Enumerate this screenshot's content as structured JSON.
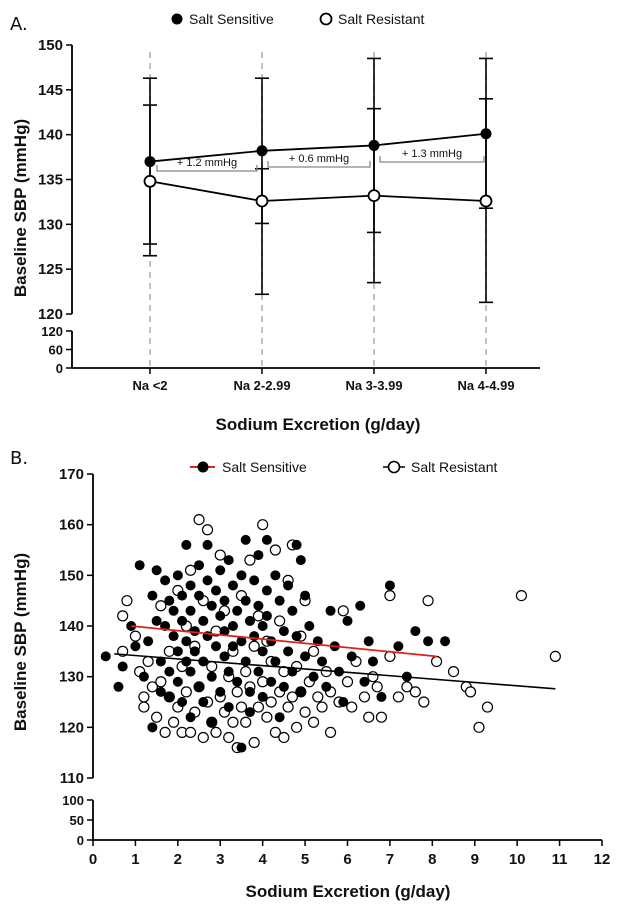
{
  "chart_data": [
    {
      "panel_label": "A.",
      "type": "line",
      "xlabel": "Sodium Excretion (g/day)",
      "ylabel": "Baseline SBP (mmHg)",
      "ylim": [
        120,
        150
      ],
      "y_broken_axis": {
        "lower_range": [
          0,
          120
        ],
        "lower_ticks": [
          "0",
          "60",
          "120"
        ]
      },
      "yticks": [
        "120",
        "125",
        "130",
        "135",
        "140",
        "145",
        "150"
      ],
      "categories": [
        "Na <2",
        "Na 2-2.99",
        "Na 3-3.99",
        "Na 4-4.99"
      ],
      "legend": {
        "placement": "top",
        "entries": [
          "Salt Sensitive",
          "Salt Resistant"
        ]
      },
      "series": [
        {
          "name": "Salt Sensitive",
          "marker": "filled-circle",
          "values": [
            137.0,
            138.2,
            138.8,
            140.1
          ],
          "error_low": [
            126.5,
            122.2,
            123.5,
            121.3
          ],
          "error_high": [
            146.3,
            146.3,
            148.5,
            148.5
          ]
        },
        {
          "name": "Salt Resistant",
          "marker": "open-circle",
          "values": [
            134.8,
            132.6,
            133.2,
            132.6
          ],
          "error_low": [
            127.8,
            130.1,
            129.1,
            131.8
          ],
          "error_high": [
            143.3,
            136.2,
            142.9,
            144.0
          ]
        }
      ],
      "annotations": [
        "+ 1.2 mmHg",
        "+ 0.6 mmHg",
        "+ 1.3 mmHg"
      ],
      "grid": false
    },
    {
      "panel_label": "B.",
      "type": "scatter",
      "xlabel": "Sodium Excretion (g/day)",
      "ylabel": "Baseline SBP (mmHg)",
      "xlim": [
        0,
        12
      ],
      "ylim": [
        110,
        170
      ],
      "y_broken_axis": {
        "lower_range": [
          0,
          100
        ],
        "lower_ticks": [
          "0",
          "50",
          "100"
        ]
      },
      "xticks": [
        "0",
        "1",
        "2",
        "3",
        "4",
        "5",
        "6",
        "7",
        "8",
        "9",
        "10",
        "11",
        "12"
      ],
      "yticks": [
        "110",
        "120",
        "130",
        "140",
        "150",
        "160",
        "170"
      ],
      "legend": {
        "placement": "top",
        "entries": [
          "Salt Sensitive",
          "Salt Resistant"
        ]
      },
      "series": [
        {
          "name": "Salt Sensitive",
          "marker": "filled-circle",
          "color": "#000000",
          "trendline": {
            "x": [
              0.9,
              8.1
            ],
            "y": [
              140.0,
              134.0
            ],
            "color": "#e02020"
          },
          "points": [
            [
              0.3,
              134
            ],
            [
              0.6,
              128
            ],
            [
              0.7,
              132
            ],
            [
              0.9,
              140
            ],
            [
              1.0,
              136
            ],
            [
              1.1,
              152
            ],
            [
              1.2,
              130
            ],
            [
              1.3,
              137
            ],
            [
              1.4,
              146
            ],
            [
              1.4,
              120
            ],
            [
              1.5,
              151
            ],
            [
              1.5,
              141
            ],
            [
              1.6,
              127
            ],
            [
              1.6,
              133
            ],
            [
              1.7,
              149
            ],
            [
              1.7,
              140
            ],
            [
              1.8,
              145
            ],
            [
              1.8,
              131
            ],
            [
              1.8,
              126
            ],
            [
              1.9,
              138
            ],
            [
              1.9,
              143
            ],
            [
              2.0,
              135
            ],
            [
              2.0,
              129
            ],
            [
              2.0,
              150
            ],
            [
              2.1,
              146
            ],
            [
              2.1,
              141
            ],
            [
              2.1,
              125
            ],
            [
              2.2,
              137
            ],
            [
              2.2,
              133
            ],
            [
              2.2,
              156
            ],
            [
              2.3,
              148
            ],
            [
              2.3,
              143
            ],
            [
              2.3,
              131
            ],
            [
              2.3,
              122
            ],
            [
              2.4,
              139
            ],
            [
              2.4,
              135
            ],
            [
              2.5,
              152
            ],
            [
              2.5,
              146
            ],
            [
              2.5,
              128
            ],
            [
              2.6,
              141
            ],
            [
              2.6,
              133
            ],
            [
              2.6,
              125
            ],
            [
              2.7,
              156
            ],
            [
              2.7,
              149
            ],
            [
              2.7,
              138
            ],
            [
              2.8,
              144
            ],
            [
              2.8,
              130
            ],
            [
              2.8,
              121
            ],
            [
              2.9,
              147
            ],
            [
              2.9,
              136
            ],
            [
              3.0,
              151
            ],
            [
              3.0,
              142
            ],
            [
              3.0,
              127
            ],
            [
              3.1,
              139
            ],
            [
              3.1,
              134
            ],
            [
              3.1,
              145
            ],
            [
              3.2,
              153
            ],
            [
              3.2,
              131
            ],
            [
              3.2,
              124
            ],
            [
              3.3,
              148
            ],
            [
              3.3,
              140
            ],
            [
              3.3,
              136
            ],
            [
              3.4,
              143
            ],
            [
              3.4,
              129
            ],
            [
              3.5,
              150
            ],
            [
              3.5,
              137
            ],
            [
              3.5,
              116
            ],
            [
              3.6,
              157
            ],
            [
              3.6,
              145
            ],
            [
              3.6,
              133
            ],
            [
              3.7,
              141
            ],
            [
              3.7,
              127
            ],
            [
              3.7,
              123
            ],
            [
              3.8,
              149
            ],
            [
              3.8,
              138
            ],
            [
              3.9,
              154
            ],
            [
              3.9,
              144
            ],
            [
              3.9,
              131
            ],
            [
              4.0,
              140
            ],
            [
              4.0,
              135
            ],
            [
              4.0,
              126
            ],
            [
              4.1,
              157
            ],
            [
              4.1,
              147
            ],
            [
              4.1,
              142
            ],
            [
              4.2,
              137
            ],
            [
              4.2,
              129
            ],
            [
              4.3,
              150
            ],
            [
              4.3,
              133
            ],
            [
              4.4,
              145
            ],
            [
              4.4,
              122
            ],
            [
              4.5,
              139
            ],
            [
              4.5,
              128
            ],
            [
              4.6,
              148
            ],
            [
              4.6,
              135
            ],
            [
              4.7,
              143
            ],
            [
              4.7,
              131
            ],
            [
              4.8,
              156
            ],
            [
              4.8,
              138
            ],
            [
              4.9,
              153
            ],
            [
              4.9,
              127
            ],
            [
              5.0,
              146
            ],
            [
              5.0,
              134
            ],
            [
              5.1,
              140
            ],
            [
              5.2,
              130
            ],
            [
              5.3,
              137
            ],
            [
              5.4,
              133
            ],
            [
              5.5,
              128
            ],
            [
              5.6,
              143
            ],
            [
              5.7,
              136
            ],
            [
              5.8,
              131
            ],
            [
              5.9,
              125
            ],
            [
              6.0,
              141
            ],
            [
              6.1,
              134
            ],
            [
              6.3,
              144
            ],
            [
              6.4,
              129
            ],
            [
              6.5,
              137
            ],
            [
              6.6,
              133
            ],
            [
              6.8,
              126
            ],
            [
              7.0,
              148
            ],
            [
              7.2,
              136
            ],
            [
              7.4,
              130
            ],
            [
              7.6,
              139
            ],
            [
              7.9,
              137
            ],
            [
              8.3,
              137
            ]
          ]
        },
        {
          "name": "Salt Resistant",
          "marker": "open-circle",
          "color": "#000000",
          "trendline": {
            "x": [
              0.5,
              10.9
            ],
            "y": [
              134.5,
              127.6
            ],
            "color": "#000000"
          },
          "points": [
            [
              0.7,
              135
            ],
            [
              0.7,
              142
            ],
            [
              0.8,
              145
            ],
            [
              1.0,
              138
            ],
            [
              1.1,
              131
            ],
            [
              1.2,
              126
            ],
            [
              1.2,
              124
            ],
            [
              1.3,
              133
            ],
            [
              1.4,
              128
            ],
            [
              1.5,
              122
            ],
            [
              1.6,
              144
            ],
            [
              1.6,
              129
            ],
            [
              1.7,
              119
            ],
            [
              1.8,
              126
            ],
            [
              1.8,
              135
            ],
            [
              1.9,
              121
            ],
            [
              2.0,
              147
            ],
            [
              2.0,
              124
            ],
            [
              2.1,
              119
            ],
            [
              2.1,
              132
            ],
            [
              2.2,
              127
            ],
            [
              2.2,
              140
            ],
            [
              2.3,
              119
            ],
            [
              2.3,
              151
            ],
            [
              2.4,
              123
            ],
            [
              2.4,
              136
            ],
            [
              2.5,
              161
            ],
            [
              2.5,
              128
            ],
            [
              2.6,
              118
            ],
            [
              2.6,
              145
            ],
            [
              2.7,
              159
            ],
            [
              2.7,
              125
            ],
            [
              2.8,
              121
            ],
            [
              2.8,
              132
            ],
            [
              2.9,
              119
            ],
            [
              2.9,
              139
            ],
            [
              3.0,
              154
            ],
            [
              3.0,
              126
            ],
            [
              3.1,
              123
            ],
            [
              3.1,
              143
            ],
            [
              3.2,
              118
            ],
            [
              3.2,
              130
            ],
            [
              3.3,
              121
            ],
            [
              3.3,
              135
            ],
            [
              3.4,
              116
            ],
            [
              3.4,
              127
            ],
            [
              3.5,
              146
            ],
            [
              3.5,
              124
            ],
            [
              3.6,
              131
            ],
            [
              3.6,
              121
            ],
            [
              3.7,
              153
            ],
            [
              3.7,
              128
            ],
            [
              3.8,
              117
            ],
            [
              3.8,
              136
            ],
            [
              3.9,
              124
            ],
            [
              3.9,
              142
            ],
            [
              4.0,
              160
            ],
            [
              4.0,
              129
            ],
            [
              4.1,
              122
            ],
            [
              4.1,
              137
            ],
            [
              4.2,
              125
            ],
            [
              4.2,
              133
            ],
            [
              4.3,
              155
            ],
            [
              4.3,
              119
            ],
            [
              4.4,
              127
            ],
            [
              4.4,
              141
            ],
            [
              4.5,
              118
            ],
            [
              4.5,
              131
            ],
            [
              4.6,
              124
            ],
            [
              4.6,
              149
            ],
            [
              4.7,
              156
            ],
            [
              4.7,
              126
            ],
            [
              4.8,
              132
            ],
            [
              4.8,
              120
            ],
            [
              4.9,
              138
            ],
            [
              4.9,
              127
            ],
            [
              5.0,
              145
            ],
            [
              5.0,
              123
            ],
            [
              5.1,
              129
            ],
            [
              5.2,
              121
            ],
            [
              5.2,
              135
            ],
            [
              5.3,
              126
            ],
            [
              5.4,
              124
            ],
            [
              5.5,
              131
            ],
            [
              5.6,
              119
            ],
            [
              5.6,
              127
            ],
            [
              5.8,
              125
            ],
            [
              5.9,
              143
            ],
            [
              6.0,
              129
            ],
            [
              6.1,
              124
            ],
            [
              6.2,
              133
            ],
            [
              6.4,
              126
            ],
            [
              6.5,
              122
            ],
            [
              6.6,
              130
            ],
            [
              6.7,
              128
            ],
            [
              6.8,
              122
            ],
            [
              7.0,
              134
            ],
            [
              7.0,
              146
            ],
            [
              7.2,
              126
            ],
            [
              7.4,
              128
            ],
            [
              7.6,
              127
            ],
            [
              7.8,
              125
            ],
            [
              7.9,
              145
            ],
            [
              8.1,
              133
            ],
            [
              8.5,
              131
            ],
            [
              8.8,
              128
            ],
            [
              8.9,
              127
            ],
            [
              9.1,
              120
            ],
            [
              9.3,
              124
            ],
            [
              10.1,
              146
            ],
            [
              10.9,
              134
            ]
          ]
        }
      ],
      "grid": false
    }
  ]
}
